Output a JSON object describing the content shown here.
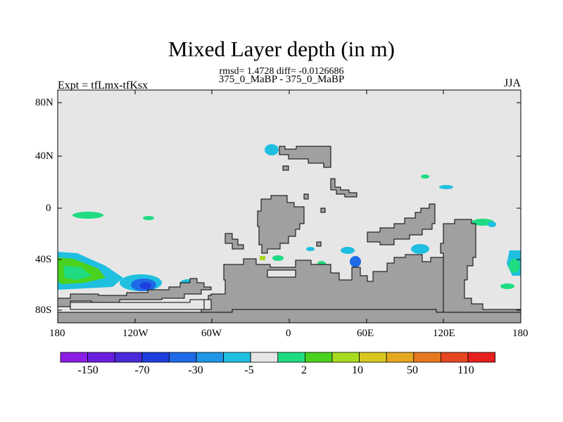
{
  "title": "Mixed Layer depth (in m)",
  "stats": "rmsd= 1.4728 diff= -0.0126686",
  "experiments": "375_0_MaBP - 375_0_MaBP",
  "expt_label": "Expt = tfLmx-tfKsx",
  "season": "JJA",
  "colors": {
    "background_field": "#e6e6e6",
    "land": "#a0a0a0",
    "outline": "#000000"
  },
  "lat_ticks": [
    "80N",
    "40N",
    "0",
    "40S",
    "80S"
  ],
  "lon_ticks": [
    "180",
    "120W",
    "60W",
    "0",
    "60E",
    "120E",
    "180"
  ],
  "colorbar": {
    "colors": [
      "#8c1fe6",
      "#6a1fe0",
      "#4a2ad8",
      "#1f3ee0",
      "#1f6ae6",
      "#1f96e6",
      "#1fbfe0",
      "#e6e6e6",
      "#1fdc82",
      "#4ad21f",
      "#a8dc1f",
      "#d8c81f",
      "#e6a81f",
      "#e6781f",
      "#e6461f",
      "#e61f1f"
    ],
    "labels": [
      "-150",
      "-70",
      "-30",
      "-5",
      "2",
      "10",
      "50",
      "110"
    ]
  }
}
